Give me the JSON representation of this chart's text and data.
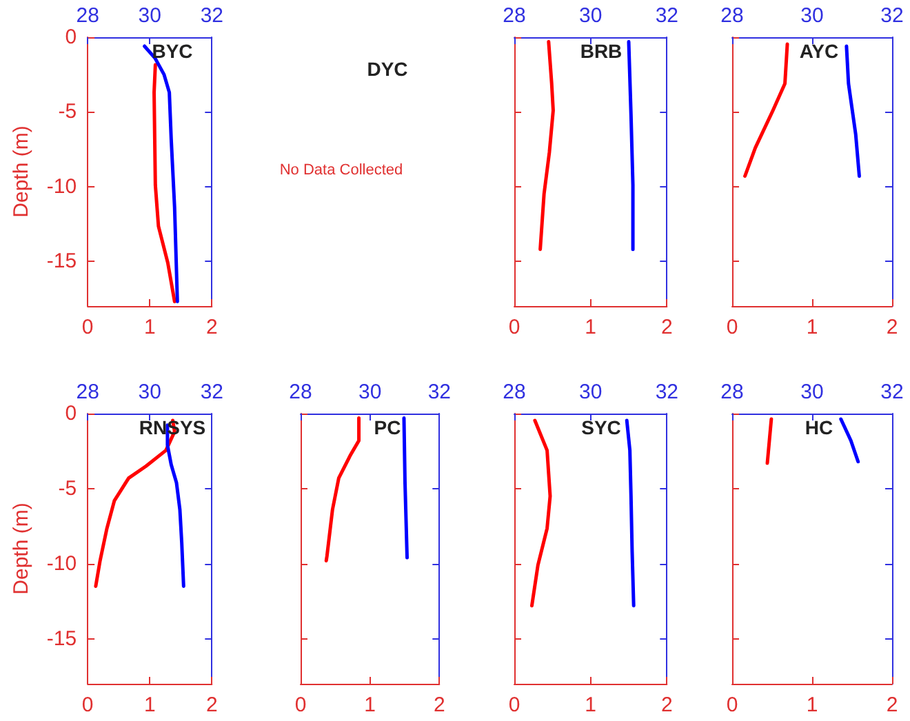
{
  "chart_data": [
    {
      "type": "line",
      "title": "BYC",
      "ylabel": "Depth (m)",
      "xlim": [
        0,
        2
      ],
      "xticks": [
        0,
        1,
        2
      ],
      "x2lim": [
        28,
        32
      ],
      "x2ticks": [
        28,
        30,
        32
      ],
      "ylim": [
        -18,
        0
      ],
      "yticks": [
        0,
        -5,
        -10,
        -15
      ],
      "series": [
        {
          "color": "#ff0000",
          "x": [
            1.09,
            1.07,
            1.09,
            1.14,
            1.29,
            1.4
          ],
          "values": [
            -1.85,
            -3.7,
            -9.9,
            -12.65,
            -15.1,
            -17.7
          ]
        },
        {
          "color": "#0000ff",
          "axis": "x2",
          "x": [
            29.83,
            30.17,
            30.46,
            30.63,
            30.69,
            30.8,
            30.89
          ],
          "values": [
            -0.6,
            -1.4,
            -2.5,
            -3.7,
            -6.8,
            -11.4,
            -17.7
          ]
        }
      ]
    },
    {
      "type": "other",
      "title": "DYC",
      "annotations": [
        "No Data Collected"
      ]
    },
    {
      "type": "line",
      "title": "BRB",
      "tick_labels": "x",
      "xlim": [
        0,
        2
      ],
      "xticks": [
        0,
        1,
        2
      ],
      "x2lim": [
        28,
        32
      ],
      "x2ticks": [
        28,
        30,
        32
      ],
      "ylim": [
        -18,
        0
      ],
      "yticks": [
        0,
        -5,
        -10,
        -15
      ],
      "series": [
        {
          "color": "#ff0000",
          "x": [
            0.45,
            0.49,
            0.51,
            0.46,
            0.39,
            0.34
          ],
          "values": [
            -0.3,
            -3.1,
            -4.9,
            -7.7,
            -10.5,
            -14.2
          ]
        },
        {
          "color": "#0000ff",
          "axis": "x2",
          "x": [
            31.0,
            31.06,
            31.11,
            31.11
          ],
          "values": [
            -0.3,
            -5.2,
            -9.9,
            -14.2
          ]
        }
      ]
    },
    {
      "type": "line",
      "title": "AYC",
      "tick_labels": "x",
      "xlim": [
        0,
        2
      ],
      "xticks": [
        0,
        1,
        2
      ],
      "x2lim": [
        28,
        32
      ],
      "x2ticks": [
        28,
        30,
        32
      ],
      "ylim": [
        -18,
        0
      ],
      "yticks": [
        0,
        -5,
        -10,
        -15
      ],
      "series": [
        {
          "color": "#ff0000",
          "x": [
            0.69,
            0.66,
            0.51,
            0.29,
            0.16
          ],
          "values": [
            -0.46,
            -3.1,
            -4.9,
            -7.4,
            -9.3
          ]
        },
        {
          "color": "#0000ff",
          "axis": "x2",
          "x": [
            30.86,
            30.91,
            31.09,
            31.18
          ],
          "values": [
            -0.6,
            -3.1,
            -6.5,
            -9.3
          ]
        }
      ]
    },
    {
      "type": "line",
      "title": "RNSYS",
      "ylabel": "Depth (m)",
      "xlim": [
        0,
        2
      ],
      "xticks": [
        0,
        1,
        2
      ],
      "x2lim": [
        28,
        32
      ],
      "x2ticks": [
        28,
        30,
        32
      ],
      "ylim": [
        -18,
        0
      ],
      "yticks": [
        0,
        -5,
        -10,
        -15
      ],
      "series": [
        {
          "color": "#ff0000",
          "x": [
            1.37,
            1.4,
            1.26,
            0.94,
            0.66,
            0.43,
            0.31,
            0.2,
            0.13
          ],
          "values": [
            -0.46,
            -1.2,
            -2.45,
            -3.5,
            -4.3,
            -5.8,
            -7.65,
            -9.8,
            -11.5
          ]
        },
        {
          "color": "#0000ff",
          "axis": "x2",
          "x": [
            30.57,
            30.57,
            30.69,
            30.86,
            30.97,
            31.03,
            31.09
          ],
          "values": [
            -0.77,
            -2.1,
            -3.4,
            -4.6,
            -6.4,
            -8.6,
            -11.5
          ]
        }
      ]
    },
    {
      "type": "line",
      "title": "PC",
      "tick_labels": "x",
      "xlim": [
        0,
        2
      ],
      "xticks": [
        0,
        1,
        2
      ],
      "x2lim": [
        28,
        32
      ],
      "x2ticks": [
        28,
        30,
        32
      ],
      "ylim": [
        -18,
        0
      ],
      "yticks": [
        0,
        -5,
        -10,
        -15
      ],
      "series": [
        {
          "color": "#ff0000",
          "x": [
            0.84,
            0.84,
            0.72,
            0.55,
            0.46,
            0.38,
            0.37
          ],
          "values": [
            -0.3,
            -1.8,
            -2.75,
            -4.3,
            -6.4,
            -9.5,
            -9.8
          ]
        },
        {
          "color": "#0000ff",
          "axis": "x2",
          "x": [
            30.98,
            31.01,
            31.07
          ],
          "values": [
            -0.3,
            -4.6,
            -9.6
          ]
        }
      ]
    },
    {
      "type": "line",
      "title": "SYC",
      "tick_labels": "x",
      "xlim": [
        0,
        2
      ],
      "xticks": [
        0,
        1,
        2
      ],
      "x2lim": [
        28,
        32
      ],
      "x2ticks": [
        28,
        30,
        32
      ],
      "ylim": [
        -18,
        0
      ],
      "yticks": [
        0,
        -5,
        -10,
        -15
      ],
      "series": [
        {
          "color": "#ff0000",
          "x": [
            0.27,
            0.43,
            0.47,
            0.43,
            0.31,
            0.23
          ],
          "values": [
            -0.46,
            -2.45,
            -5.5,
            -7.65,
            -10.1,
            -12.8
          ]
        },
        {
          "color": "#0000ff",
          "axis": "x2",
          "x": [
            30.95,
            31.03,
            31.06,
            31.09,
            31.13
          ],
          "values": [
            -0.46,
            -2.45,
            -5.5,
            -9.2,
            -12.8
          ]
        }
      ]
    },
    {
      "type": "line",
      "title": "HC",
      "tick_labels": "x",
      "xlim": [
        0,
        2
      ],
      "xticks": [
        0,
        1,
        2
      ],
      "x2lim": [
        28,
        32
      ],
      "x2ticks": [
        28,
        30,
        32
      ],
      "ylim": [
        -18,
        0
      ],
      "yticks": [
        0,
        -5,
        -10,
        -15
      ],
      "series": [
        {
          "color": "#ff0000",
          "x": [
            0.49,
            0.44
          ],
          "values": [
            -0.37,
            -3.3
          ]
        },
        {
          "color": "#0000ff",
          "axis": "x2",
          "x": [
            30.72,
            30.97,
            31.15
          ],
          "values": [
            -0.37,
            -1.8,
            -3.2
          ]
        }
      ]
    }
  ]
}
